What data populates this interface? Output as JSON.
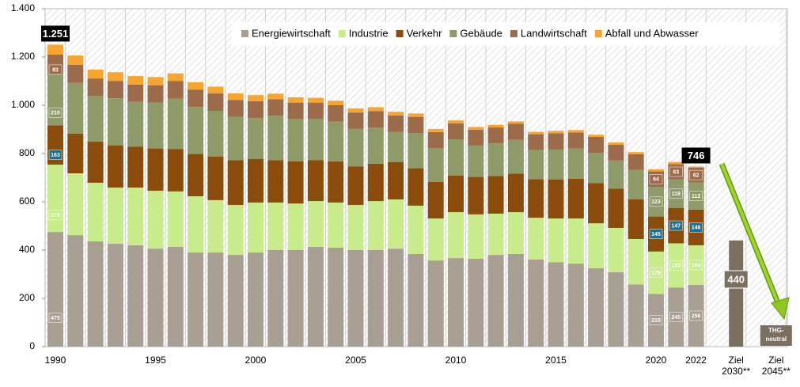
{
  "chart_data": {
    "type": "stacked_bar",
    "categories": [
      "1990",
      null,
      null,
      null,
      null,
      "1995",
      null,
      null,
      null,
      null,
      "2000",
      null,
      null,
      null,
      null,
      "2005",
      null,
      null,
      null,
      null,
      "2010",
      null,
      null,
      null,
      null,
      "2015",
      null,
      null,
      null,
      null,
      "2020",
      null,
      "2022",
      "Ziel\n2030**",
      "Ziel\n2045**"
    ],
    "series": [
      {
        "name": "Energiewirtschaft",
        "color": "#a89f92",
        "values": [
          475,
          462,
          436,
          426,
          420,
          406,
          413,
          390,
          390,
          380,
          390,
          400,
          400,
          413,
          410,
          400,
          400,
          406,
          384,
          357,
          367,
          364,
          380,
          384,
          361,
          350,
          344,
          325,
          308,
          258,
          218,
          245,
          256,
          null,
          null
        ],
        "value_labels": [
          "475",
          null,
          null,
          null,
          null,
          null,
          null,
          null,
          null,
          null,
          null,
          null,
          null,
          null,
          null,
          null,
          null,
          null,
          null,
          null,
          null,
          null,
          null,
          null,
          null,
          null,
          null,
          null,
          null,
          null,
          "218",
          "245",
          "256",
          null,
          null
        ]
      },
      {
        "name": "Industrie",
        "color": "#c8eb8c",
        "values": [
          279,
          256,
          243,
          233,
          239,
          240,
          230,
          233,
          217,
          207,
          207,
          197,
          193,
          190,
          187,
          187,
          203,
          204,
          200,
          174,
          190,
          184,
          171,
          173,
          173,
          181,
          187,
          186,
          184,
          188,
          176,
          183,
          164,
          null,
          null
        ],
        "value_labels": [
          "279",
          null,
          null,
          null,
          null,
          null,
          null,
          null,
          null,
          null,
          null,
          null,
          null,
          null,
          null,
          null,
          null,
          null,
          null,
          null,
          null,
          null,
          null,
          null,
          null,
          null,
          null,
          null,
          null,
          null,
          "176",
          "183",
          "164",
          null,
          null
        ]
      },
      {
        "name": "Verkehr",
        "color": "#8a4b0b",
        "label_color": "#1f6e8c",
        "values": [
          163,
          165,
          170,
          175,
          170,
          175,
          175,
          175,
          180,
          185,
          180,
          175,
          175,
          170,
          170,
          160,
          155,
          155,
          155,
          152,
          152,
          155,
          156,
          160,
          160,
          162,
          165,
          167,
          162,
          164,
          145,
          147,
          148,
          null,
          null
        ],
        "value_labels": [
          "163",
          null,
          null,
          null,
          null,
          null,
          null,
          null,
          null,
          null,
          null,
          null,
          null,
          null,
          null,
          null,
          null,
          null,
          null,
          null,
          null,
          null,
          null,
          null,
          null,
          null,
          null,
          null,
          null,
          null,
          "145",
          "147",
          "148",
          null,
          null
        ]
      },
      {
        "name": "Gebäude",
        "color": "#8e9a67",
        "values": [
          210,
          210,
          190,
          195,
          185,
          190,
          210,
          195,
          190,
          180,
          170,
          185,
          175,
          170,
          165,
          155,
          150,
          125,
          145,
          140,
          150,
          130,
          135,
          140,
          120,
          125,
          125,
          125,
          117,
          122,
          123,
          118,
          112,
          null,
          null
        ],
        "value_labels": [
          "210",
          null,
          null,
          null,
          null,
          null,
          null,
          null,
          null,
          null,
          null,
          null,
          null,
          null,
          null,
          null,
          null,
          null,
          null,
          null,
          null,
          null,
          null,
          null,
          null,
          null,
          null,
          null,
          null,
          null,
          "123",
          "118",
          "112",
          null,
          null
        ]
      },
      {
        "name": "Landwirtschaft",
        "color": "#9c6b4a",
        "values": [
          83,
          75,
          72,
          72,
          72,
          72,
          72,
          72,
          72,
          70,
          70,
          68,
          68,
          68,
          68,
          68,
          68,
          68,
          68,
          66,
          66,
          66,
          66,
          66,
          66,
          66,
          66,
          66,
          66,
          65,
          64,
          63,
          62,
          null,
          null
        ],
        "value_labels": [
          "83",
          null,
          null,
          null,
          null,
          null,
          null,
          null,
          null,
          null,
          null,
          null,
          null,
          null,
          null,
          null,
          null,
          null,
          null,
          null,
          null,
          null,
          null,
          null,
          null,
          null,
          null,
          null,
          null,
          null,
          "64",
          "63",
          "62",
          null,
          null
        ]
      },
      {
        "name": "Abfall und Abwasser",
        "color": "#f7a530",
        "values": [
          41,
          38,
          37,
          36,
          35,
          34,
          32,
          30,
          28,
          27,
          25,
          23,
          22,
          20,
          19,
          17,
          16,
          15,
          14,
          13,
          12,
          11,
          11,
          10,
          10,
          10,
          10,
          9,
          9,
          9,
          9,
          9,
          4,
          null,
          null
        ]
      }
    ],
    "targets": {
      "color": "#7b6f5f",
      "values": [
        440,
        0
      ],
      "value_labels": [
        "440",
        null
      ]
    },
    "annotations": [
      "1.251",
      "746",
      "THG-\nneutral"
    ],
    "ylim": [
      0,
      1400
    ],
    "yticks": [
      0,
      200,
      400,
      600,
      800,
      {
        "value": 1000,
        "label": "1.000"
      },
      {
        "value": 1200,
        "label": "1.200"
      },
      {
        "value": 1400,
        "label": "1.400"
      }
    ],
    "legend": "top-right"
  }
}
